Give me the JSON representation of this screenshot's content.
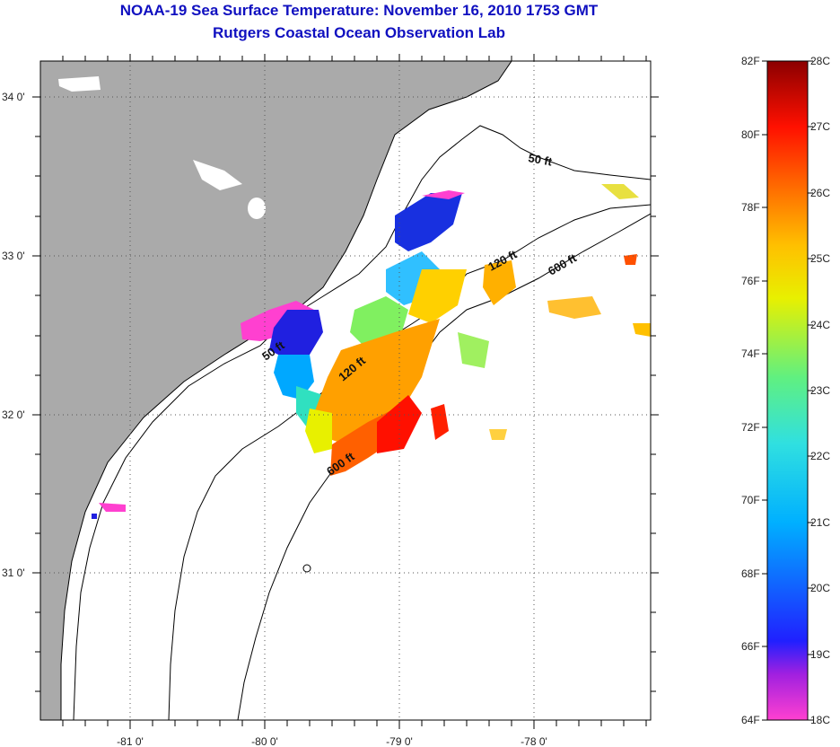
{
  "title": {
    "line1": "NOAA-19 Sea Surface Temperature:  November 16, 2010 1753 GMT",
    "line2": "Rutgers Coastal Ocean Observation Lab"
  },
  "map": {
    "lat_labels": [
      "34 0'",
      "33 0'",
      "32 0'",
      "31 0'"
    ],
    "lon_labels": [
      "-81 0'",
      "-80 0'",
      "-79 0'",
      "-78 0'"
    ],
    "contour_labels": [
      "50 ft",
      "50 ft",
      "120 ft",
      "120 ft",
      "600 ft",
      "600 ft"
    ],
    "colors": {
      "land": "#aaaaaa",
      "ocean": "#ffffff",
      "coastline": "#000000"
    }
  },
  "colorbar": {
    "fahrenheit_labels": [
      "82F",
      "80F",
      "78F",
      "76F",
      "74F",
      "72F",
      "70F",
      "68F",
      "66F",
      "64F"
    ],
    "celsius_labels": [
      "28C",
      "27C",
      "26C",
      "25C",
      "24C",
      "23C",
      "22C",
      "21C",
      "20C",
      "19C",
      "18C"
    ],
    "gradient_colors": [
      "#8b0000",
      "#ff0000",
      "#ff8000",
      "#ffff00",
      "#00ff80",
      "#00ffff",
      "#0080ff",
      "#0000ff",
      "#8000ff",
      "#ff00ff"
    ]
  }
}
